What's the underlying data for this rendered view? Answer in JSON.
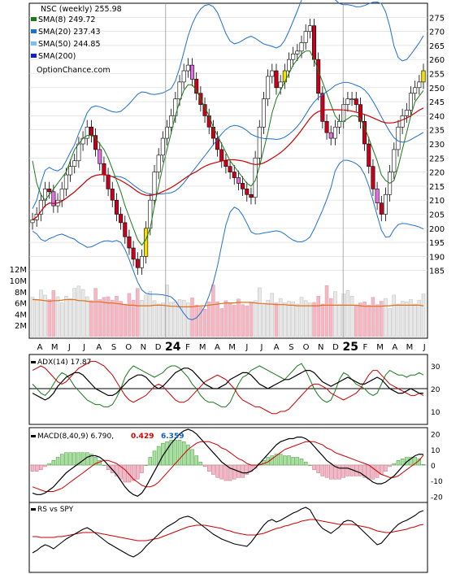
{
  "chart_data": [
    {
      "type": "candlestick",
      "panel": "price",
      "ylim": [
        180,
        280
      ],
      "y_ticks": [
        185,
        190,
        195,
        200,
        205,
        210,
        215,
        220,
        225,
        230,
        235,
        240,
        245,
        250,
        255,
        260,
        265,
        270,
        275
      ],
      "legend": [
        {
          "label": "NSC (weekly) 255.98",
          "color": "#000000"
        },
        {
          "label": "SMA(8) 249.72",
          "color": "#1a7a1a"
        },
        {
          "label": "SMA(20) 237.43",
          "color": "#1e6fd0"
        },
        {
          "label": "SMA(50) 244.85",
          "color": "#7cc0ee"
        },
        {
          "label": "SMA(200)",
          "color": "#1020c8"
        },
        {
          "label": "OptionChance.com",
          "color": "#000000"
        }
      ],
      "close": [
        203,
        205,
        210,
        214,
        213,
        208,
        210,
        214,
        219,
        222,
        224,
        230,
        232,
        236,
        233,
        228,
        223,
        219,
        214,
        210,
        205,
        202,
        197,
        193,
        189,
        186,
        190,
        200,
        210,
        220,
        226,
        232,
        236,
        240,
        246,
        252,
        256,
        258,
        253,
        248,
        244,
        240,
        236,
        232,
        228,
        224,
        222,
        220,
        218,
        216,
        214,
        212,
        211,
        225,
        236,
        246,
        254,
        256,
        250,
        252,
        256,
        260,
        262,
        263,
        266,
        270,
        272,
        260,
        248,
        238,
        234,
        232,
        236,
        238,
        244,
        246,
        246,
        244,
        238,
        230,
        222,
        214,
        209,
        205,
        212,
        220,
        228,
        236,
        240,
        242,
        248,
        250,
        252,
        256
      ],
      "sma8": [
        224,
        216,
        212,
        210,
        212,
        214,
        216,
        218,
        220,
        224,
        228,
        230,
        232,
        233,
        233,
        232,
        230,
        228,
        225,
        221,
        217,
        213,
        208,
        204,
        200,
        196,
        194,
        196,
        200,
        208,
        215,
        222,
        228,
        234,
        240,
        245,
        249,
        251,
        251,
        249,
        246,
        243,
        240,
        236,
        233,
        230,
        227,
        224,
        222,
        220,
        218,
        216,
        215,
        217,
        222,
        228,
        234,
        241,
        246,
        249,
        252,
        255,
        258,
        260,
        262,
        263,
        263,
        260,
        256,
        252,
        248,
        244,
        240,
        238,
        238,
        239,
        240,
        240,
        239,
        236,
        232,
        228,
        224,
        219,
        217,
        216,
        217,
        222,
        228,
        234,
        240,
        245,
        247,
        249
      ]
    },
    {
      "type": "bar",
      "panel": "volume",
      "y_ticks": [
        "2M",
        "4M",
        "6M",
        "8M",
        "10M",
        "12M"
      ],
      "values": [
        7.0,
        6.5,
        8.3,
        7.4,
        6.6,
        8.2,
        7.1,
        6.0,
        7.2,
        6.8,
        8.6,
        9.0,
        8.4,
        7.1,
        6.4,
        8.6,
        6.6,
        7.0,
        7.1,
        6.5,
        7.2,
        6.3,
        5.8,
        7.7,
        6.5,
        8.6,
        6.5,
        7.4,
        8.1,
        6.4,
        5.8,
        6.0,
        9.2,
        6.1,
        6.2,
        6.6,
        6.5,
        6.0,
        6.9,
        5.6,
        5.3,
        4.9,
        6.2,
        9.2,
        6.2,
        5.0,
        6.4,
        6.0,
        5.6,
        6.7,
        5.7,
        5.5,
        6.0,
        6.4,
        8.7,
        5.7,
        6.5,
        7.7,
        6.0,
        6.8,
        6.0,
        6.3,
        6.2,
        5.8,
        7.0,
        6.4,
        6.0,
        6.1,
        7.2,
        5.8,
        9.1,
        6.8,
        8.0,
        5.7,
        7.6,
        8.2,
        7.2,
        5.6,
        6.0,
        6.2,
        5.6,
        7.0,
        5.7,
        6.3,
        6.8,
        5.0,
        7.4,
        5.8,
        6.3,
        6.2,
        6.6,
        5.8,
        6.5,
        7.6
      ],
      "avg": [
        6.6,
        6.6,
        6.5,
        6.4,
        6.3,
        6.4,
        6.4,
        6.5,
        6.6,
        6.6,
        6.6,
        6.4,
        6.4,
        6.3,
        6.2,
        6.2,
        6.2,
        6.1,
        6.0,
        6.0,
        5.9,
        5.8,
        5.7,
        5.6,
        5.6,
        5.5,
        5.5,
        5.5,
        5.5,
        5.6,
        5.6,
        5.6,
        5.5,
        5.4,
        5.4,
        5.3,
        5.3,
        5.3,
        5.3,
        5.4,
        5.5,
        5.5,
        5.6,
        5.7,
        5.8,
        5.9,
        6.0,
        6.0,
        6.0,
        6.1,
        6.1,
        6.1,
        6.1,
        6.0,
        5.9,
        5.9,
        5.8,
        5.8,
        5.7,
        5.7,
        5.7,
        5.6,
        5.6,
        5.5,
        5.5,
        5.5,
        5.5,
        5.5,
        5.5,
        5.6,
        5.6,
        5.6,
        5.6,
        5.6,
        5.6,
        5.6,
        5.6,
        5.6,
        5.5,
        5.4,
        5.4,
        5.4,
        5.4,
        5.4,
        5.5,
        5.5,
        5.6,
        5.6,
        5.6,
        5.6,
        5.6,
        5.6,
        5.6,
        5.5
      ]
    },
    {
      "type": "categories",
      "panel": "x-axis",
      "labels": [
        "A",
        "M",
        "J",
        "J",
        "A",
        "S",
        "O",
        "N",
        "D",
        "24",
        "F",
        "M",
        "A",
        "M",
        "J",
        "J",
        "A",
        "S",
        "O",
        "N",
        "D",
        "25",
        "F",
        "M",
        "A",
        "M",
        "J"
      ]
    },
    {
      "type": "line",
      "panel": "adx",
      "title": "ADX(14) 17.87",
      "ylim": [
        5,
        35
      ],
      "y_ticks": [
        10,
        20,
        30
      ],
      "series": [
        {
          "name": "adx",
          "values": [
            18,
            17,
            16,
            15,
            16,
            18,
            21,
            23,
            25,
            26,
            27,
            27,
            26,
            24,
            22,
            20,
            19,
            18,
            17,
            17,
            18,
            20,
            22,
            24,
            25,
            26,
            26,
            25,
            23,
            21,
            20,
            21,
            23,
            25,
            27,
            28,
            29,
            29,
            28,
            26,
            24,
            22,
            21,
            20,
            20,
            21,
            22,
            24,
            25,
            26,
            27,
            27,
            26,
            24,
            22,
            21,
            20,
            21,
            22,
            23,
            24,
            24,
            25,
            26,
            27,
            28,
            28,
            27,
            25,
            23,
            22,
            21,
            22,
            23,
            24,
            25,
            24,
            23,
            22,
            22,
            23,
            24,
            25,
            24,
            22,
            20,
            19,
            18,
            18,
            19,
            20,
            19,
            18,
            18
          ]
        },
        {
          "name": "+di",
          "values": [
            22,
            20,
            18,
            17,
            19,
            22,
            25,
            27,
            26,
            24,
            21,
            19,
            17,
            15,
            14,
            13,
            13,
            12,
            12,
            13,
            16,
            20,
            25,
            28,
            30,
            29,
            28,
            27,
            26,
            25,
            26,
            27,
            29,
            30,
            30,
            29,
            27,
            25,
            22,
            20,
            17,
            15,
            14,
            14,
            13,
            12,
            12,
            14,
            18,
            22,
            25,
            26,
            28,
            29,
            30,
            29,
            28,
            27,
            26,
            25,
            24,
            26,
            28,
            30,
            31,
            28,
            24,
            20,
            17,
            15,
            14,
            15,
            19,
            24,
            27,
            26,
            24,
            22,
            21,
            20,
            18,
            17,
            18,
            22,
            26,
            28,
            27,
            26,
            26,
            25,
            26,
            26,
            27,
            26
          ]
        },
        {
          "name": "-di",
          "values": [
            28,
            29,
            30,
            29,
            27,
            25,
            23,
            22,
            23,
            25,
            27,
            29,
            30,
            31,
            32,
            32,
            31,
            30,
            28,
            26,
            23,
            20,
            17,
            15,
            14,
            15,
            16,
            17,
            19,
            21,
            22,
            21,
            19,
            17,
            15,
            14,
            14,
            15,
            17,
            19,
            21,
            23,
            24,
            25,
            26,
            25,
            24,
            22,
            20,
            17,
            15,
            14,
            13,
            12,
            12,
            11,
            10,
            9,
            9,
            10,
            10,
            11,
            13,
            15,
            17,
            19,
            21,
            22,
            22,
            21,
            20,
            18,
            17,
            16,
            15,
            16,
            17,
            18,
            20,
            23,
            26,
            28,
            28,
            26,
            24,
            22,
            21,
            20,
            19,
            18,
            17,
            17,
            18,
            17
          ]
        }
      ]
    },
    {
      "type": "line",
      "panel": "macd",
      "title": "MACD(8,40,9) 6.790,",
      "annotations": [
        "0.429",
        "6.359"
      ],
      "ylim": [
        -23,
        23
      ],
      "y_ticks": [
        -20,
        -10,
        0,
        10,
        20
      ],
      "series": [
        {
          "name": "macd",
          "values": [
            -18,
            -19,
            -19,
            -18,
            -16,
            -14,
            -11,
            -8,
            -5,
            -3,
            -1,
            1,
            3,
            5,
            6,
            6,
            5,
            3,
            0,
            -3,
            -6,
            -10,
            -14,
            -17,
            -19,
            -20,
            -18,
            -14,
            -9,
            -4,
            1,
            6,
            10,
            14,
            17,
            20,
            22,
            23,
            22,
            20,
            17,
            14,
            11,
            8,
            5,
            2,
            0,
            -2,
            -3,
            -4,
            -5,
            -5,
            -4,
            -2,
            1,
            4,
            7,
            10,
            13,
            15,
            16,
            17,
            17,
            18,
            18,
            17,
            15,
            12,
            9,
            6,
            3,
            1,
            -1,
            -2,
            -2,
            -2,
            -3,
            -4,
            -5,
            -7,
            -9,
            -11,
            -12,
            -12,
            -11,
            -9,
            -7,
            -4,
            -1,
            2,
            4,
            6,
            7,
            6.8
          ]
        },
        {
          "name": "signal",
          "values": [
            -14,
            -15,
            -16,
            -17,
            -17,
            -17,
            -16,
            -15,
            -13,
            -11,
            -9,
            -7,
            -5,
            -3,
            -1,
            1,
            2,
            3,
            3,
            2,
            1,
            -1,
            -3,
            -6,
            -9,
            -11,
            -13,
            -14,
            -14,
            -13,
            -11,
            -8,
            -5,
            -2,
            1,
            4,
            7,
            10,
            12,
            14,
            15,
            15,
            15,
            14,
            13,
            11,
            10,
            8,
            6,
            4,
            3,
            1,
            0,
            0,
            0,
            1,
            2,
            4,
            6,
            8,
            10,
            11,
            12,
            13,
            14,
            15,
            15,
            15,
            14,
            13,
            11,
            10,
            8,
            7,
            6,
            5,
            4,
            3,
            2,
            1,
            0,
            -2,
            -4,
            -6,
            -7,
            -8,
            -8,
            -7,
            -5,
            -3,
            -1,
            1,
            3,
            6.36
          ]
        }
      ]
    },
    {
      "type": "line",
      "panel": "rs",
      "title": "RS vs SPY",
      "series": [
        {
          "name": "rs",
          "values": [
            20,
            23,
            27,
            30,
            28,
            25,
            29,
            33,
            37,
            40,
            43,
            46,
            49,
            51,
            48,
            44,
            40,
            36,
            32,
            29,
            26,
            23,
            20,
            17,
            15,
            18,
            22,
            28,
            33,
            38,
            43,
            48,
            52,
            55,
            58,
            62,
            64,
            65,
            63,
            59,
            55,
            51,
            47,
            43,
            40,
            37,
            35,
            33,
            31,
            30,
            29,
            28,
            33,
            40,
            47,
            54,
            59,
            61,
            58,
            60,
            63,
            66,
            69,
            71,
            74,
            76,
            73,
            64,
            56,
            50,
            47,
            44,
            48,
            52,
            58,
            60,
            59,
            55,
            50,
            45,
            40,
            35,
            30,
            32,
            38,
            44,
            50,
            55,
            58,
            60,
            63,
            66,
            70,
            72
          ]
        },
        {
          "name": "rs-avg",
          "values": [
            40,
            40,
            39,
            39,
            39,
            39,
            40,
            40,
            41,
            42,
            43,
            44,
            45,
            45,
            45,
            45,
            44,
            43,
            42,
            41,
            40,
            39,
            38,
            37,
            36,
            35,
            35,
            35,
            36,
            37,
            38,
            40,
            42,
            44,
            46,
            48,
            50,
            52,
            53,
            54,
            54,
            54,
            53,
            52,
            51,
            50,
            48,
            47,
            45,
            44,
            43,
            42,
            42,
            42,
            43,
            44,
            46,
            48,
            50,
            51,
            53,
            54,
            56,
            57,
            59,
            60,
            61,
            61,
            60,
            59,
            58,
            57,
            56,
            55,
            55,
            55,
            55,
            54,
            53,
            52,
            51,
            49,
            47,
            46,
            45,
            45,
            46,
            47,
            48,
            49,
            51,
            52,
            54,
            55
          ]
        }
      ]
    }
  ]
}
